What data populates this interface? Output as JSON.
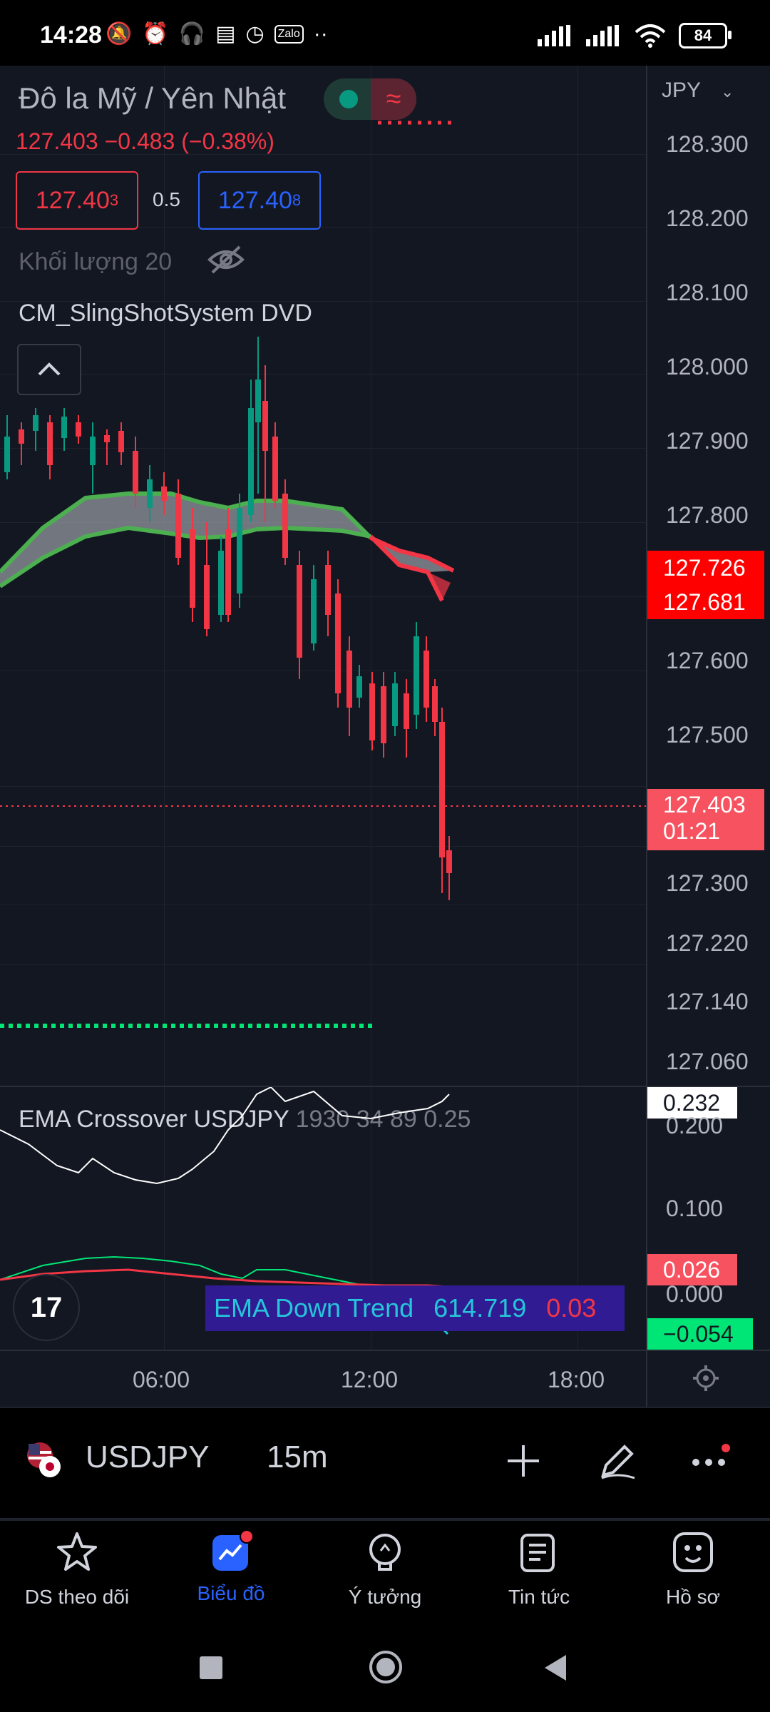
{
  "status": {
    "time": "14:28",
    "battery": "84",
    "left_icons": [
      "muted-bell-icon",
      "alarm-icon",
      "headset-icon",
      "message-icon",
      "clock-icon",
      "zalo-icon",
      "more-dots-icon"
    ]
  },
  "chart": {
    "title": "Đô la Mỹ / Yên Nhật",
    "price_line": "127.403  −0.483 (−0.38%)",
    "bid": {
      "main": "127.40",
      "sup": "3"
    },
    "spread": "0.5",
    "ask": {
      "main": "127.40",
      "sup": "8"
    },
    "volume_label": "Khối lượng 20",
    "indicator": "CM_SlingShotSystem DVD",
    "currency": "JPY",
    "price_axis": [
      "128.300",
      "128.200",
      "128.100",
      "128.000",
      "127.900",
      "127.800",
      "127.600",
      "127.500",
      "127.300",
      "127.220",
      "127.140",
      "127.060"
    ],
    "tag_upper": "127.726",
    "tag_lower": "127.681",
    "tag_last": "127.403",
    "tag_countdown": "01:21",
    "colors": {
      "up": "#089981",
      "down": "#f23645",
      "accent": "#2962ff",
      "background": "#131722"
    }
  },
  "oscillator": {
    "label_main": "EMA Crossover USDJPY",
    "label_params": "1930 34 89 0.25",
    "axis": [
      "0.200",
      "0.100",
      "0.000"
    ],
    "tag_top": "0.232",
    "tag_mid": "0.026",
    "tag_bottom": "−0.054",
    "ema_box": {
      "name": "EMA Down Trend",
      "value": "614.719",
      "value2": "0.03"
    }
  },
  "time_axis": [
    "06:00",
    "12:00",
    "18:00"
  ],
  "toolbar": {
    "symbol": "USDJPY",
    "interval": "15m"
  },
  "nav": [
    {
      "label": "DS theo dõi",
      "icon": "star-icon"
    },
    {
      "label": "Biểu đồ",
      "icon": "chart-icon"
    },
    {
      "label": "Ý tưởng",
      "icon": "lightbulb-icon"
    },
    {
      "label": "Tin tức",
      "icon": "news-icon"
    },
    {
      "label": "Hồ sơ",
      "icon": "profile-smile-icon"
    }
  ]
}
